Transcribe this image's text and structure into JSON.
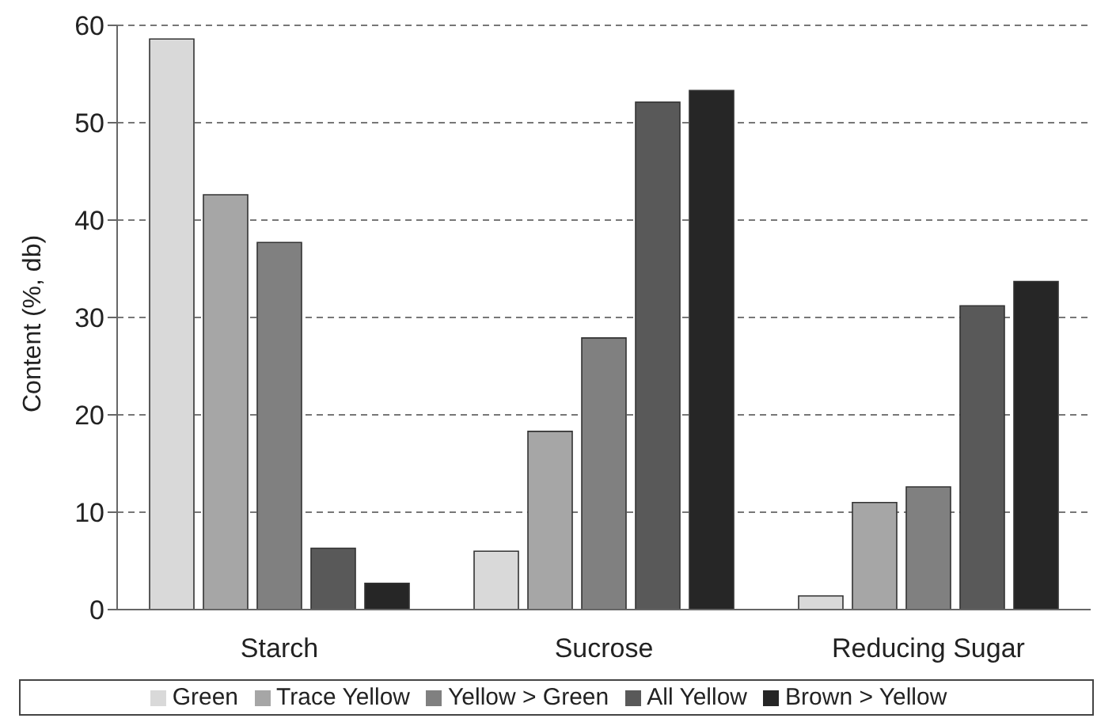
{
  "chart_data": {
    "type": "bar",
    "ylabel": "Content (%, db)",
    "categories": [
      "Starch",
      "Sucrose",
      "Reducing Sugar"
    ],
    "series": [
      {
        "name": "Green",
        "color": "#d9d9d9",
        "values": [
          58.6,
          6.0,
          1.4
        ]
      },
      {
        "name": "Trace Yellow",
        "color": "#a6a6a6",
        "values": [
          42.6,
          18.3,
          11.0
        ]
      },
      {
        "name": "Yellow > Green",
        "color": "#808080",
        "values": [
          37.7,
          27.9,
          12.6
        ]
      },
      {
        "name": "All Yellow",
        "color": "#595959",
        "values": [
          6.3,
          52.1,
          31.2
        ]
      },
      {
        "name": "Brown > Yellow",
        "color": "#262626",
        "values": [
          2.7,
          53.3,
          33.7
        ]
      }
    ],
    "ylim": [
      0,
      60
    ],
    "yticks": [
      0,
      10,
      20,
      30,
      40,
      50,
      60
    ],
    "grid": "y",
    "legend": "bottom"
  }
}
